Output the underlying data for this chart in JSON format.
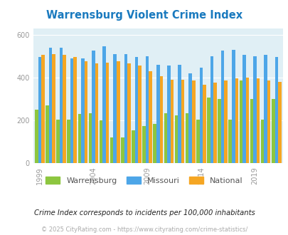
{
  "title": "Warrensburg Violent Crime Index",
  "title_color": "#1a7abf",
  "years": [
    1999,
    2000,
    2001,
    2002,
    2003,
    2004,
    2005,
    2006,
    2007,
    2008,
    2009,
    2010,
    2011,
    2012,
    2013,
    2014,
    2015,
    2016,
    2017,
    2018,
    2019,
    2020,
    2021
  ],
  "warrensburg": [
    250,
    270,
    205,
    205,
    230,
    235,
    200,
    120,
    120,
    155,
    175,
    185,
    235,
    225,
    235,
    205,
    305,
    300,
    205,
    385,
    300,
    205,
    300
  ],
  "missouri": [
    495,
    540,
    540,
    490,
    490,
    525,
    545,
    510,
    510,
    495,
    500,
    460,
    455,
    460,
    420,
    445,
    500,
    525,
    530,
    505,
    500,
    505,
    495
  ],
  "national": [
    505,
    510,
    505,
    495,
    475,
    465,
    470,
    475,
    465,
    455,
    430,
    405,
    390,
    390,
    385,
    365,
    375,
    385,
    395,
    400,
    395,
    385,
    380
  ],
  "warrensburg_color": "#8dc63f",
  "missouri_color": "#4da6e8",
  "national_color": "#f5a623",
  "bg_color": "#e0eff5",
  "ylabel_ticks": [
    0,
    200,
    400,
    600
  ],
  "ytick_labels": [
    "0",
    "200",
    "400",
    "600"
  ],
  "xlabel_ticks": [
    1999,
    2004,
    2009,
    2014,
    2019
  ],
  "ylim": [
    0,
    630
  ],
  "note": "Crime Index corresponds to incidents per 100,000 inhabitants",
  "note_color": "#222222",
  "copyright": "© 2025 CityRating.com - https://www.cityrating.com/crime-statistics/",
  "copyright_color": "#aaaaaa",
  "legend_text_color": "#555555",
  "figsize": [
    4.06,
    3.3
  ],
  "dpi": 100
}
